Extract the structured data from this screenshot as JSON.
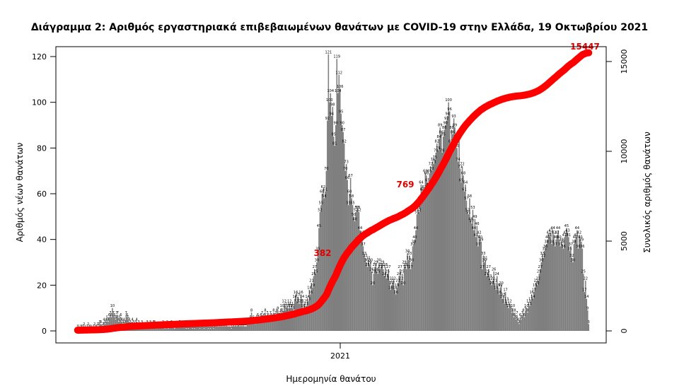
{
  "chart_data": {
    "type": "bar",
    "title": "Διάγραμμα 2: Αριθμός εργαστηριακά επιβεβαιωμένων θανάτων με COVID-19 στην Ελλάδα, 19 Οκτωβρίου 2021",
    "xlabel": "Ημερομηνία θανάτου",
    "ylabel": "Αριθμός νέων θανάτων",
    "y2label": "Συνολικός αριθμός θανάτων",
    "x_tick_labels": [
      "2021"
    ],
    "ylim": [
      0,
      120
    ],
    "y_ticks": [
      0,
      20,
      40,
      60,
      80,
      100,
      120
    ],
    "y2lim": [
      0,
      15000
    ],
    "y2_ticks": [
      0,
      5000,
      10000,
      15000
    ],
    "series": [
      {
        "kind": "bar",
        "color": "#7f7f7f",
        "values": [
          1,
          1,
          0,
          1,
          1,
          1,
          2,
          1,
          0,
          1,
          2,
          1,
          1,
          1,
          0,
          1,
          2,
          1,
          1,
          2,
          2,
          3,
          3,
          1,
          2,
          4,
          3,
          4,
          5,
          4,
          6,
          7,
          6,
          10,
          7,
          6,
          5,
          7,
          7,
          4,
          5,
          6,
          4,
          3,
          4,
          3,
          7,
          6,
          5,
          4,
          3,
          2,
          4,
          3,
          2,
          3,
          4,
          2,
          3,
          2,
          2,
          3,
          2,
          2,
          2,
          1,
          3,
          2,
          2,
          3,
          2,
          2,
          3,
          3,
          2,
          1,
          2,
          2,
          2,
          2,
          2,
          3,
          2,
          1,
          2,
          3,
          1,
          2,
          2,
          3,
          2,
          2,
          1,
          2,
          2,
          2,
          2,
          3,
          2,
          2,
          2,
          2,
          2,
          1,
          2,
          1,
          2,
          2,
          2,
          1,
          2,
          1,
          2,
          2,
          3,
          2,
          1,
          2,
          2,
          2,
          1,
          2,
          2,
          2,
          1,
          2,
          1,
          2,
          2,
          1,
          3,
          2,
          3,
          2,
          2,
          3,
          2,
          3,
          2,
          3,
          2,
          3,
          2,
          2,
          2,
          2,
          1,
          2,
          3,
          2,
          3,
          2,
          3,
          3,
          2,
          3,
          2,
          3,
          2,
          2,
          2,
          4,
          3,
          4,
          5,
          8,
          4,
          5,
          4,
          3,
          5,
          6,
          5,
          4,
          6,
          7,
          5,
          6,
          8,
          4,
          7,
          6,
          5,
          7,
          6,
          5,
          8,
          6,
          7,
          8,
          9,
          6,
          7,
          8,
          10,
          7,
          12,
          9,
          10,
          11,
          8,
          12,
          10,
          11,
          10,
          9,
          14,
          16,
          13,
          15,
          12,
          12,
          16,
          14,
          10,
          12,
          9,
          11,
          14,
          13,
          18,
          16,
          21,
          19,
          24,
          27,
          25,
          30,
          35,
          45,
          52,
          55,
          60,
          62,
          58,
          61,
          70,
          92,
          121,
          100,
          104,
          94,
          98,
          85,
          81,
          90,
          119,
          104,
          112,
          106,
          95,
          90,
          87,
          82,
          70,
          73,
          66,
          55,
          60,
          67,
          58,
          55,
          50,
          48,
          52,
          53,
          53,
          52,
          44,
          39,
          42,
          37,
          33,
          32,
          30,
          28,
          31,
          29,
          30,
          26,
          20,
          25,
          28,
          29,
          26,
          25,
          30,
          27,
          28,
          29,
          27,
          24,
          28,
          23,
          25,
          27,
          22,
          18,
          20,
          21,
          22,
          18,
          16,
          19,
          21,
          24,
          27,
          22,
          25,
          20,
          29,
          28,
          27,
          34,
          31,
          33,
          27,
          30,
          37,
          38,
          40,
          44,
          51,
          53,
          52,
          57,
          64,
          61,
          61,
          62,
          69,
          68,
          65,
          63,
          69,
          72,
          70,
          74,
          73,
          75,
          78,
          82,
          79,
          84,
          89,
          86,
          78,
          85,
          88,
          90,
          92,
          94,
          100,
          96,
          82,
          88,
          86,
          93,
          89,
          84,
          80,
          74,
          85,
          71,
          65,
          72,
          68,
          61,
          64,
          57,
          52,
          51,
          58,
          48,
          47,
          53,
          44,
          49,
          41,
          46,
          37,
          42,
          40,
          39,
          27,
          33,
          30,
          31,
          24,
          25,
          27,
          23,
          22,
          20,
          22,
          26,
          21,
          18,
          24,
          19,
          16,
          19,
          20,
          14,
          15,
          12,
          17,
          13,
          11,
          10,
          12,
          9,
          8,
          10,
          6,
          8,
          5,
          7,
          4,
          3,
          6,
          5,
          7,
          8,
          6,
          9,
          10,
          8,
          12,
          11,
          13,
          16,
          14,
          17,
          19,
          21,
          20,
          22,
          25,
          27,
          30,
          33,
          32,
          35,
          36,
          38,
          40,
          42,
          41,
          43,
          38,
          44,
          42,
          37,
          40,
          42,
          44,
          40,
          37,
          39,
          38,
          36,
          41,
          42,
          45,
          43,
          41,
          35,
          37,
          32,
          30,
          38,
          40,
          41,
          44,
          36,
          42,
          40,
          39,
          36,
          25,
          17,
          22,
          14,
          9,
          3
        ],
        "labels": [
          "1",
          "1",
          "0",
          "1",
          "1",
          "1",
          "2",
          "1",
          "0",
          "1",
          "2",
          "1",
          "1",
          "1",
          "0",
          "1",
          "2",
          "1",
          "1",
          "2",
          "2",
          "3",
          "3",
          "1",
          "2",
          "4",
          "3",
          "4",
          "5",
          "4",
          "6",
          "7",
          "6",
          "10",
          "7",
          "6",
          "5",
          "7",
          "7",
          "4",
          "5",
          "6",
          "4",
          "3",
          "4",
          "3",
          "7",
          "6",
          "5",
          "4",
          "3",
          "2",
          "4",
          "3",
          "2",
          "3",
          "4",
          "2",
          "3",
          "2",
          "2",
          "3",
          "2",
          "2",
          "2",
          "1",
          "3",
          "2",
          "2",
          "3",
          "2",
          "2",
          "3",
          "3",
          "2",
          "1",
          "2",
          "2",
          "2",
          "2",
          "2",
          "3",
          "2",
          "1",
          "2",
          "3",
          "1",
          "2",
          "2",
          "3",
          "2",
          "2",
          "1",
          "2",
          "2",
          "2",
          "2",
          "3",
          "2",
          "2",
          "2",
          "2",
          "2",
          "1",
          "2",
          "1",
          "2",
          "2",
          "2",
          "1",
          "2",
          "1",
          "2",
          "2",
          "3",
          "2",
          "1",
          "2",
          "2",
          "2",
          "1",
          "2",
          "2",
          "2",
          "1",
          "2",
          "1",
          "2",
          "2",
          "1",
          "3",
          "2",
          "3",
          "2",
          "2",
          "3",
          "2",
          "3",
          "2",
          "3",
          "2",
          "3",
          "2",
          "2",
          "2",
          "2",
          "1",
          "2",
          "3",
          "2",
          "3",
          "2",
          "3",
          "3",
          "2",
          "3",
          "2",
          "3",
          "2",
          "2",
          "2",
          "4",
          "3",
          "4",
          "5",
          "8",
          "4",
          "5",
          "4",
          "3",
          "5",
          "6",
          "5",
          "4",
          "6",
          "7",
          "5",
          "6",
          "8",
          "4",
          "7",
          "6",
          "5",
          "7",
          "6",
          "5",
          "8",
          "6",
          "7",
          "8",
          "9",
          "6",
          "7",
          "8",
          "10",
          "7",
          "12",
          "9",
          "10",
          "11",
          "8",
          "12",
          "10",
          "11",
          "10",
          "9",
          "14",
          "16",
          "13",
          "15",
          "12",
          "12",
          "16",
          "14",
          "10",
          "12",
          "9",
          "11",
          "14",
          "13",
          "18",
          "16",
          "21",
          "19",
          "24",
          "27",
          "25",
          "30",
          "35",
          "45",
          "52",
          "55",
          "60",
          "62",
          "58",
          "61",
          "70",
          "92",
          "121",
          "100",
          "104",
          "94",
          "98",
          "85",
          "81",
          "90",
          "119",
          "104",
          "112",
          "106",
          "95",
          "90",
          "87",
          "82",
          "70",
          "73",
          "66",
          "55",
          "60",
          "67",
          "58",
          "55",
          "50",
          "48",
          "52",
          "53",
          "53",
          "52",
          "44",
          "39",
          "42",
          "37",
          "33",
          "32",
          "30",
          "28",
          "31",
          "29",
          "30",
          "26",
          "20",
          "25",
          "28",
          "29",
          "26",
          "25",
          "30",
          "27",
          "28",
          "29",
          "27",
          "24",
          "28",
          "23",
          "25",
          "27",
          "22",
          "18",
          "20",
          "21",
          "22",
          "18",
          "16",
          "19",
          "21",
          "24",
          "27",
          "22",
          "25",
          "20",
          "29",
          "28",
          "27",
          "34",
          "31",
          "33",
          "27",
          "30",
          "37",
          "38",
          "40",
          "44",
          "51",
          "53",
          "52",
          "57",
          "64",
          "61",
          "61",
          "62",
          "69",
          "68",
          "65",
          "63",
          "69",
          "72",
          "70",
          "74",
          "73",
          "75",
          "78",
          "82",
          "79",
          "84",
          "89",
          "86",
          "78",
          "85",
          "88",
          "90",
          "92",
          "94",
          "100",
          "96",
          "82",
          "88",
          "86",
          "93",
          "89",
          "84",
          "80",
          "74",
          "85",
          "71",
          "65",
          "72",
          "68",
          "61",
          "64",
          "57",
          "52",
          "51",
          "58",
          "48",
          "47",
          "53",
          "44",
          "49",
          "41",
          "46",
          "37",
          "42",
          "40",
          "39",
          "27",
          "33",
          "30",
          "31",
          "24",
          "25",
          "27",
          "23",
          "22",
          "20",
          "22",
          "26",
          "21",
          "18",
          "24",
          "19",
          "16",
          "19",
          "20",
          "14",
          "15",
          "12",
          "17",
          "13",
          "11",
          "10",
          "12",
          "9",
          "8",
          "10",
          "6",
          "8",
          "5",
          "7",
          "4",
          "3",
          "6",
          "5",
          "7",
          "8",
          "6",
          "9",
          "10",
          "8",
          "12",
          "11",
          "13",
          "16",
          "14",
          "17",
          "19",
          "21",
          "20",
          "22",
          "25",
          "27",
          "30",
          "33",
          "32",
          "35",
          "36",
          "38",
          "40",
          "42",
          "41",
          "43",
          "38",
          "44",
          "42",
          "37",
          "40",
          "42",
          "44",
          "40",
          "37",
          "39",
          "38",
          "36",
          "41",
          "42",
          "45",
          "43",
          "41",
          "35",
          "37",
          "32",
          "30",
          "38",
          "40",
          "41",
          "44",
          "36",
          "42",
          "40",
          "39",
          "36",
          "25",
          "17",
          "22",
          "14",
          "9",
          "3"
        ]
      },
      {
        "kind": "line",
        "axis": "right",
        "color": "#ff0000",
        "cumulative_of": "bars"
      }
    ],
    "annotations": [
      {
        "text": "382",
        "color": "#e00000"
      },
      {
        "text": "769",
        "color": "#e00000"
      },
      {
        "text": "15447",
        "color": "#e00000"
      }
    ],
    "grid": false,
    "legend": "none"
  }
}
